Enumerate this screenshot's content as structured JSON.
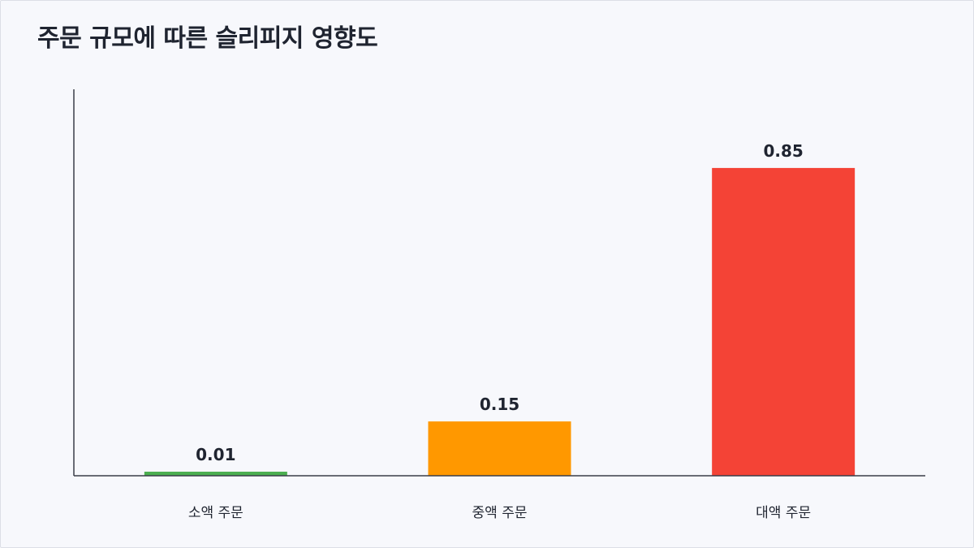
{
  "chart_data": {
    "type": "bar",
    "title": "주문 규모에 따른 슬리피지 영향도",
    "xlabel": "",
    "ylabel": "",
    "categories": [
      "소액 주문",
      "중액 주문",
      "대액 주문"
    ],
    "values": [
      0.01,
      0.15,
      0.85
    ],
    "value_labels": [
      "0.01",
      "0.15",
      "0.85"
    ],
    "colors": [
      "#4caf50",
      "#ff9800",
      "#f44336"
    ],
    "ylim": [
      0,
      1.0
    ],
    "grid": false,
    "legend": "none"
  },
  "colors": {
    "background": "#f7f8fc",
    "axis": "#3a3d48",
    "text": "#1f2430"
  }
}
